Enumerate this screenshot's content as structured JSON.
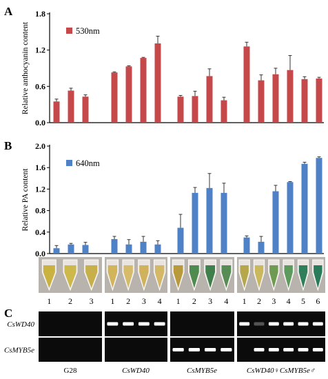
{
  "panels": {
    "a_letter": "A",
    "b_letter": "B",
    "c_letter": "C"
  },
  "chart_data": [
    {
      "type": "bar",
      "panel": "A",
      "ylabel": "Relative anthocyanin content",
      "ylim": [
        0,
        1.8
      ],
      "yticks": [
        "0.0",
        "0.6",
        "1.2",
        "1.8"
      ],
      "ytick_values": [
        0,
        0.6,
        1.2,
        1.8
      ],
      "legend": "530nm",
      "legend_placement": "top-left",
      "color": "#c5494a",
      "groups": [
        {
          "values": [
            0.35,
            0.53,
            0.43
          ],
          "errors": [
            0.04,
            0.04,
            0.03
          ]
        },
        {
          "values": [
            0.83,
            0.93,
            1.07,
            1.31
          ],
          "errors": [
            0.01,
            0.01,
            0.01,
            0.12
          ]
        },
        {
          "values": [
            0.43,
            0.44,
            0.77,
            0.37
          ],
          "errors": [
            0.02,
            0.08,
            0.12,
            0.05
          ]
        },
        {
          "values": [
            1.26,
            0.7,
            0.8,
            0.87,
            0.72,
            0.73
          ],
          "errors": [
            0.07,
            0.09,
            0.1,
            0.24,
            0.04,
            0.02
          ]
        }
      ]
    },
    {
      "type": "bar",
      "panel": "B",
      "ylabel": "Relative PA content",
      "ylim": [
        0,
        2.0
      ],
      "yticks": [
        "0.0",
        "0.4",
        "0.8",
        "1.2",
        "1.6",
        "2.0"
      ],
      "ytick_values": [
        0,
        0.4,
        0.8,
        1.2,
        1.6,
        2.0
      ],
      "legend": "640nm",
      "legend_placement": "top-left",
      "color": "#4f81c6",
      "groups": [
        {
          "values": [
            0.1,
            0.17,
            0.16
          ],
          "errors": [
            0.05,
            0.02,
            0.05
          ]
        },
        {
          "values": [
            0.27,
            0.17,
            0.22,
            0.17
          ],
          "errors": [
            0.05,
            0.09,
            0.1,
            0.07
          ]
        },
        {
          "values": [
            0.48,
            1.13,
            1.22,
            1.13
          ],
          "errors": [
            0.25,
            0.1,
            0.27,
            0.18
          ]
        },
        {
          "values": [
            0.3,
            0.22,
            1.16,
            1.33,
            1.67,
            1.78
          ],
          "errors": [
            0.03,
            0.1,
            0.11,
            0.01,
            0.03,
            0.02
          ]
        }
      ]
    }
  ],
  "tubes": {
    "groups": [
      {
        "numbers": [
          "1",
          "2",
          "3"
        ],
        "colors": [
          "#c9b23f",
          "#ccb84b",
          "#c7b04a"
        ]
      },
      {
        "numbers": [
          "1",
          "2",
          "3",
          "4"
        ],
        "colors": [
          "#d2b45a",
          "#d6bc6a",
          "#d1b25c",
          "#d4b866"
        ]
      },
      {
        "numbers": [
          "1",
          "2",
          "3",
          "4"
        ],
        "colors": [
          "#b89a3c",
          "#4f8a4f",
          "#3f7f4c",
          "#578c55"
        ]
      },
      {
        "numbers": [
          "1",
          "2",
          "3",
          "4",
          "5",
          "6"
        ],
        "colors": [
          "#b5a74a",
          "#c9b85c",
          "#6e9a52",
          "#5d9a5e",
          "#2f7f5a",
          "#2a7a5c"
        ]
      }
    ]
  },
  "gel": {
    "row_labels": [
      "CsWD40",
      "CsMYB5e"
    ],
    "group_labels": [
      {
        "text": "G28",
        "italic": false
      },
      {
        "text": "CsWD40",
        "italic": true
      },
      {
        "text": "CsMYB5e",
        "italic": true
      },
      {
        "text": "CsWD40♀CsMYB5e♂",
        "italic": true
      }
    ],
    "bands": {
      "CsWD40": [
        [
          0,
          0,
          0
        ],
        [
          1,
          1,
          1,
          1
        ],
        [
          0,
          0,
          0,
          0
        ],
        [
          1,
          0.3,
          1,
          1,
          1,
          1
        ]
      ],
      "CsMYB5e": [
        [
          0,
          0,
          0
        ],
        [
          0,
          0,
          0,
          0
        ],
        [
          1,
          1,
          1,
          1
        ],
        [
          0,
          1,
          1,
          1,
          1,
          1
        ]
      ]
    }
  }
}
